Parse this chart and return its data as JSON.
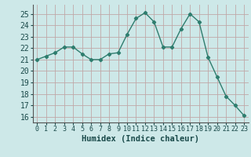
{
  "x": [
    0,
    1,
    2,
    3,
    4,
    5,
    6,
    7,
    8,
    9,
    10,
    11,
    12,
    13,
    14,
    15,
    16,
    17,
    18,
    19,
    20,
    21,
    22,
    23
  ],
  "y": [
    21.0,
    21.3,
    21.6,
    22.1,
    22.1,
    21.5,
    21.0,
    21.0,
    21.5,
    21.6,
    23.2,
    24.6,
    25.1,
    24.3,
    22.1,
    22.1,
    23.7,
    25.0,
    24.3,
    21.2,
    19.5,
    17.8,
    17.0,
    16.1
  ],
  "line_color": "#2e7d6e",
  "marker": "D",
  "marker_size": 2.2,
  "line_width": 1.0,
  "bg_color": "#cde8e8",
  "grid_color": "#c0a8a8",
  "xlabel": "Humidex (Indice chaleur)",
  "ylim": [
    15.5,
    25.8
  ],
  "yticks": [
    16,
    17,
    18,
    19,
    20,
    21,
    22,
    23,
    24,
    25
  ],
  "xticks": [
    0,
    1,
    2,
    3,
    4,
    5,
    6,
    7,
    8,
    9,
    10,
    11,
    12,
    13,
    14,
    15,
    16,
    17,
    18,
    19,
    20,
    21,
    22,
    23
  ],
  "xlabel_fontsize": 7.5,
  "ytick_fontsize": 7.0,
  "xtick_fontsize": 6.0
}
